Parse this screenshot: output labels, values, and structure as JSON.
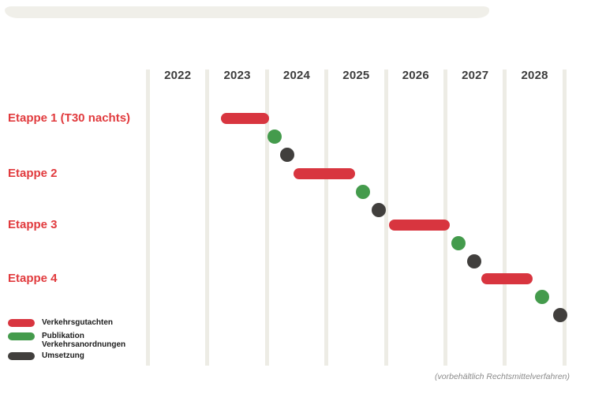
{
  "footnote": "(vorbehältlich Rechtsmittelverfahren)",
  "colors": {
    "bar_red": "#d8353f",
    "row_label_red": "#e13b3e",
    "dot_green": "#449b4c",
    "dot_dark": "#413f3d",
    "gridline": "#edece5",
    "header_shape": "#f0efe9",
    "year_text": "#3d3d3d",
    "legend_text": "#1c1c1c",
    "footnote_text": "#8a8a8a"
  },
  "chart_data": {
    "type": "gantt",
    "title": "",
    "x_axis_years": [
      "2022",
      "2023",
      "2024",
      "2025",
      "2026",
      "2027",
      "2028"
    ],
    "x_range": [
      2022,
      2029
    ],
    "grid": true,
    "rows": [
      {
        "label": "Etappe 1 (T30 nachts)",
        "bar_start": 2023.23,
        "bar_end": 2024.04,
        "publication_dot": 2024.13,
        "implementation_dot": 2024.34
      },
      {
        "label": "Etappe 2",
        "bar_start": 2024.45,
        "bar_end": 2025.48,
        "publication_dot": 2025.62,
        "implementation_dot": 2025.88
      },
      {
        "label": "Etappe 3",
        "bar_start": 2026.05,
        "bar_end": 2027.07,
        "publication_dot": 2027.22,
        "implementation_dot": 2027.48
      },
      {
        "label": "Etappe 4",
        "bar_start": 2027.6,
        "bar_end": 2028.46,
        "publication_dot": 2028.63,
        "implementation_dot": 2028.93
      }
    ],
    "legend": [
      {
        "label_lines": [
          "Verkehrsgutachten"
        ],
        "marker": "red-pill",
        "color": "#d8353f"
      },
      {
        "label_lines": [
          "Publikation",
          "Verkehrsanordnungen"
        ],
        "marker": "green-pill",
        "color": "#449b4c"
      },
      {
        "label_lines": [
          "Umsetzung"
        ],
        "marker": "dark-pill",
        "color": "#413f3d"
      }
    ],
    "legend_position": "bottom-left",
    "footnote": "(vorbehältlich Rechtsmittelverfahren)"
  }
}
